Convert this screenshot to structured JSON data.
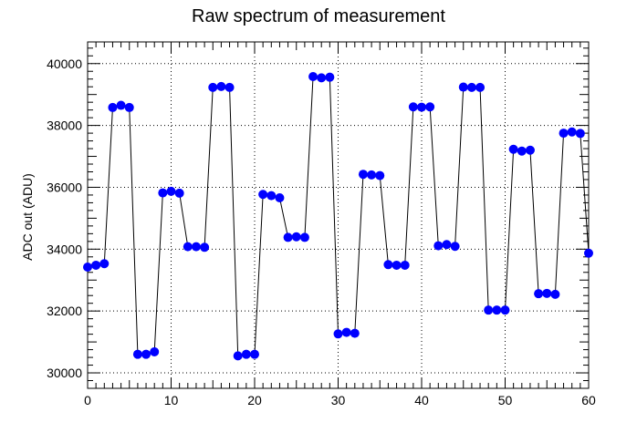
{
  "chart_data": {
    "type": "line",
    "title": "Raw spectrum of measurement",
    "xlabel": "",
    "ylabel": "ADC out (ADU)",
    "xlim": [
      0,
      60
    ],
    "ylim": [
      29500,
      40700
    ],
    "x_ticks": [
      0,
      10,
      20,
      30,
      40,
      50,
      60
    ],
    "y_ticks": [
      30000,
      32000,
      34000,
      36000,
      38000,
      40000
    ],
    "grid": true,
    "series": [
      {
        "marker_color": "#0000ff",
        "line_color": "#000000",
        "x": [
          0,
          1,
          2,
          3,
          4,
          5,
          6,
          7,
          8,
          9,
          10,
          11,
          12,
          13,
          14,
          15,
          16,
          17,
          18,
          19,
          20,
          21,
          22,
          23,
          24,
          25,
          26,
          27,
          28,
          29,
          30,
          31,
          32,
          33,
          34,
          35,
          36,
          37,
          38,
          39,
          40,
          41,
          42,
          43,
          44,
          45,
          46,
          47,
          48,
          49,
          50,
          51,
          52,
          53,
          54,
          55,
          56,
          57,
          58,
          59,
          60
        ],
        "values": [
          33420,
          33480,
          33530,
          38580,
          38650,
          38580,
          30600,
          30600,
          30680,
          35820,
          35870,
          35810,
          34080,
          34080,
          34060,
          39230,
          39260,
          39230,
          30550,
          30600,
          30600,
          35770,
          35730,
          35660,
          34380,
          34400,
          34380,
          39580,
          39540,
          39560,
          31260,
          31310,
          31280,
          36420,
          36400,
          36380,
          33500,
          33480,
          33480,
          38600,
          38590,
          38600,
          34110,
          34150,
          34090,
          39240,
          39230,
          39230,
          32030,
          32030,
          32030,
          37230,
          37170,
          37200,
          32560,
          32570,
          32540,
          37750,
          37790,
          37740,
          33870
        ]
      }
    ]
  }
}
